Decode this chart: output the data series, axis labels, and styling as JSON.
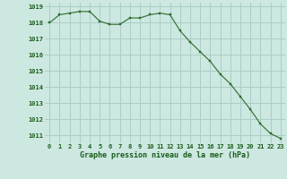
{
  "x": [
    0,
    1,
    2,
    3,
    4,
    5,
    6,
    7,
    8,
    9,
    10,
    11,
    12,
    13,
    14,
    15,
    16,
    17,
    18,
    19,
    20,
    21,
    22,
    23
  ],
  "y": [
    1018.0,
    1018.5,
    1018.6,
    1018.7,
    1018.7,
    1018.1,
    1017.9,
    1017.9,
    1018.3,
    1018.3,
    1018.5,
    1018.6,
    1018.5,
    1017.5,
    1016.8,
    1016.2,
    1015.6,
    1014.8,
    1014.2,
    1013.4,
    1012.6,
    1011.7,
    1011.1,
    1010.8
  ],
  "line_color": "#2d6a2d",
  "marker_color": "#2d6a2d",
  "bg_color": "#cce8e0",
  "grid_color": "#aacec8",
  "xlabel": "Graphe pression niveau de la mer (hPa)",
  "xlabel_color": "#1a5c1a",
  "tick_color": "#1a5c1a",
  "ylim": [
    1010.5,
    1019.25
  ],
  "xlim": [
    -0.5,
    23.5
  ],
  "yticks": [
    1011,
    1012,
    1013,
    1014,
    1015,
    1016,
    1017,
    1018,
    1019
  ],
  "xticks": [
    0,
    1,
    2,
    3,
    4,
    5,
    6,
    7,
    8,
    9,
    10,
    11,
    12,
    13,
    14,
    15,
    16,
    17,
    18,
    19,
    20,
    21,
    22,
    23
  ],
  "xtick_labels": [
    "0",
    "1",
    "2",
    "3",
    "4",
    "5",
    "6",
    "7",
    "8",
    "9",
    "10",
    "11",
    "12",
    "13",
    "14",
    "15",
    "16",
    "17",
    "18",
    "19",
    "20",
    "21",
    "22",
    "23"
  ],
  "ytick_labels": [
    "1011",
    "1012",
    "1013",
    "1014",
    "1015",
    "1016",
    "1017",
    "1018",
    "1019"
  ]
}
